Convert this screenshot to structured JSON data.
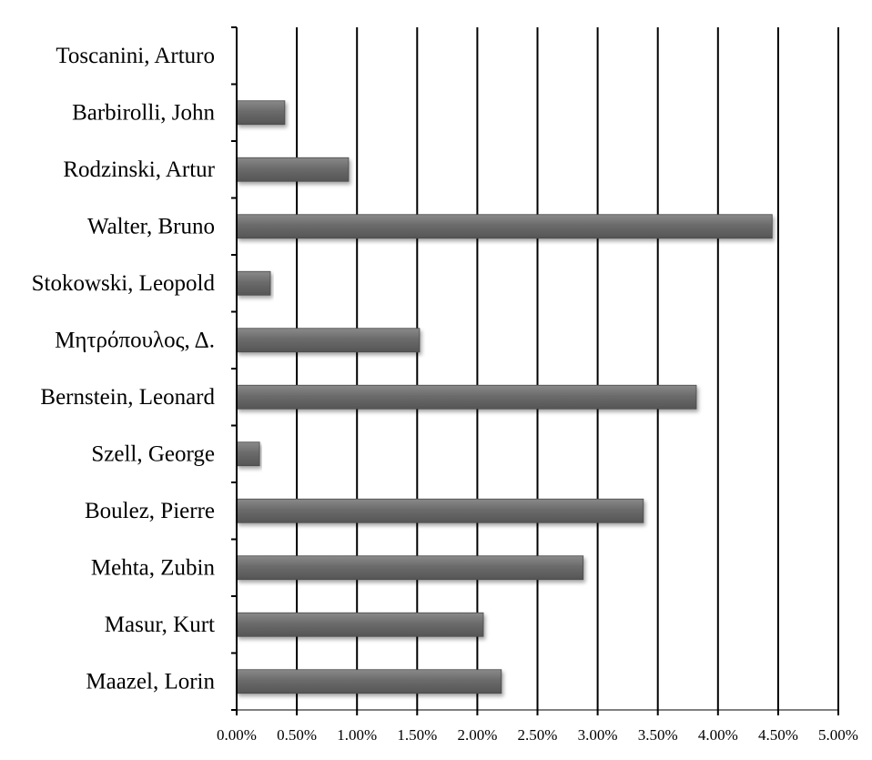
{
  "chart_data": {
    "type": "bar",
    "orientation": "horizontal",
    "categories": [
      "Toscanini, Arturo",
      "Barbirolli, John",
      "Rodzinski, Artur",
      "Walter, Bruno",
      "Stokowski, Leopold",
      "Μητρόπουλος, Δ.",
      "Bernstein, Leonard",
      "Szell, George",
      "Boulez, Pierre",
      "Mehta, Zubin",
      "Masur, Kurt",
      "Maazel, Lorin"
    ],
    "values": [
      0.0,
      0.4,
      0.93,
      4.45,
      0.28,
      1.52,
      3.82,
      0.19,
      3.38,
      2.88,
      2.05,
      2.2
    ],
    "xlim": [
      0,
      5
    ],
    "x_ticks": [
      0,
      0.5,
      1,
      1.5,
      2,
      2.5,
      3,
      3.5,
      4,
      4.5,
      5
    ],
    "x_tick_labels": [
      "0.00%",
      "0.50%",
      "1.00%",
      "1.50%",
      "2.00%",
      "2.50%",
      "3.00%",
      "3.50%",
      "4.00%",
      "4.50%",
      "5.00%"
    ],
    "value_unit": "percent",
    "grid": "vertical",
    "legend": "none",
    "bar_color": "#6b6b6b",
    "title": "",
    "xlabel": "",
    "ylabel": ""
  }
}
